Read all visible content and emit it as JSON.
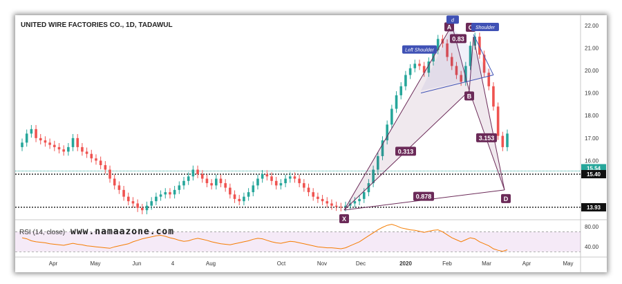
{
  "chart_data": {
    "type": "candlestick",
    "title": "UNITED WIRE FACTORIES CO., 1D, TADAWUL",
    "ylim": [
      13.5,
      22.3
    ],
    "y_ticks": [
      "22.00",
      "21.00",
      "20.00",
      "19.00",
      "18.00",
      "17.00",
      "16.00"
    ],
    "x_ticks": [
      "Apr",
      "May",
      "Jun",
      "4",
      "Aug",
      "Oct",
      "Nov",
      "Dec",
      "2020",
      "Feb",
      "Mar",
      "Apr",
      "May"
    ],
    "price_levels": [
      {
        "label": "15.54",
        "value": 15.54,
        "color": "#26a69a"
      },
      {
        "label": "15.40",
        "value": 15.4,
        "color": "#111111"
      },
      {
        "label": "13.93",
        "value": 13.93,
        "color": "#111111"
      }
    ],
    "closes": [
      16.8,
      17.2,
      17.4,
      17.0,
      16.9,
      16.8,
      16.7,
      16.6,
      16.5,
      16.4,
      16.6,
      17.0,
      16.6,
      16.4,
      16.3,
      16.1,
      16.0,
      15.8,
      15.6,
      15.2,
      14.9,
      14.7,
      14.4,
      14.2,
      14.1,
      13.9,
      13.8,
      14.0,
      14.2,
      14.4,
      14.5,
      14.6,
      14.5,
      14.7,
      14.9,
      15.1,
      15.3,
      15.6,
      15.4,
      15.2,
      15.0,
      14.9,
      15.2,
      15.0,
      14.8,
      14.5,
      14.3,
      14.2,
      14.4,
      14.6,
      14.9,
      15.2,
      15.4,
      15.3,
      15.1,
      14.9,
      15.0,
      15.2,
      15.3,
      15.2,
      15.0,
      14.8,
      14.6,
      14.4,
      14.3,
      14.2,
      14.1,
      14.0,
      13.95,
      13.93,
      14.0,
      14.1,
      14.2,
      14.3,
      14.6,
      15.0,
      15.6,
      16.2,
      16.9,
      17.6,
      18.3,
      18.9,
      19.3,
      19.8,
      20.1,
      20.3,
      20.2,
      19.9,
      20.4,
      20.9,
      21.4,
      21.2,
      20.6,
      20.2,
      19.8,
      19.5,
      20.2,
      21.1,
      21.5,
      20.7,
      19.9,
      19.3,
      18.4,
      17.1,
      16.6,
      17.2
    ],
    "patterns": {
      "labels": [
        "X",
        "A",
        "B",
        "C",
        "D",
        "Left Shoulder",
        "Shoulder",
        "d"
      ],
      "ratios": [
        "0.313",
        "0.878",
        "0.83",
        "3.153"
      ],
      "points": {
        "X": 13.93,
        "A": 21.95,
        "B": 19.1,
        "C": 21.5,
        "D": 14.7
      }
    },
    "rsi": {
      "label": "RSI (14, close)",
      "ylim": [
        25,
        90
      ],
      "y_ticks": [
        "80.00",
        "40.00"
      ],
      "band": [
        30,
        70
      ],
      "values": [
        58,
        56,
        52,
        50,
        49,
        48,
        46,
        45,
        44,
        43,
        45,
        47,
        45,
        44,
        42,
        41,
        40,
        39,
        38,
        37,
        40,
        42,
        44,
        46,
        50,
        53,
        56,
        58,
        60,
        62,
        63,
        61,
        58,
        56,
        53,
        51,
        52,
        55,
        57,
        55,
        53,
        50,
        48,
        46,
        45,
        44,
        46,
        48,
        50,
        52,
        55,
        57,
        56,
        53,
        50,
        48,
        47,
        49,
        51,
        50,
        48,
        46,
        44,
        42,
        40,
        39,
        38,
        38,
        37,
        36,
        38,
        42,
        46,
        50,
        56,
        62,
        68,
        74,
        79,
        83,
        85,
        82,
        78,
        76,
        74,
        73,
        71,
        69,
        71,
        73,
        74,
        70,
        64,
        58,
        54,
        50,
        54,
        58,
        56,
        50,
        46,
        42,
        36,
        33,
        31,
        34
      ]
    },
    "watermark": "www.namaazone.com"
  }
}
